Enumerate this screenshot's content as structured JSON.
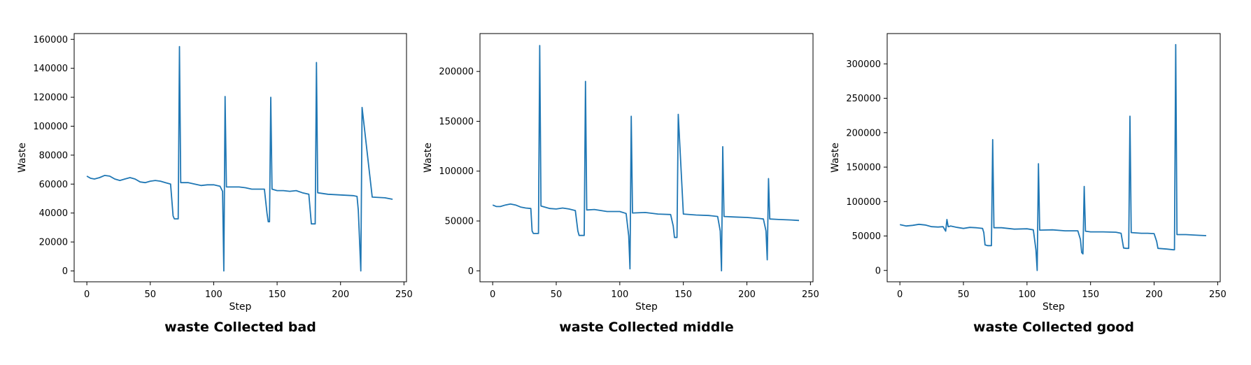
{
  "chart_data": [
    {
      "type": "line",
      "title": "waste Collected bad",
      "xlabel": "Step",
      "ylabel": "Waste",
      "xlim": [
        -10,
        252
      ],
      "ylim": [
        -7500,
        164000
      ],
      "xticks": [
        0,
        50,
        100,
        150,
        200,
        250
      ],
      "xtick_labels": [
        "0",
        "50",
        "100",
        "150",
        "200",
        "250"
      ],
      "yticks": [
        0,
        20000,
        40000,
        60000,
        80000,
        100000,
        120000,
        140000,
        160000
      ],
      "ytick_labels": [
        "0",
        "20000",
        "40000",
        "60000",
        "80000",
        "100000",
        "120000",
        "140000",
        "160000"
      ],
      "grid": false,
      "series": [
        {
          "color": "#1f77b4",
          "x": [
            0,
            3,
            6,
            10,
            14,
            18,
            22,
            26,
            30,
            34,
            38,
            42,
            46,
            50,
            54,
            58,
            62,
            66,
            68,
            69,
            70,
            72,
            73,
            74,
            80,
            85,
            90,
            95,
            100,
            105,
            107,
            108,
            109,
            110,
            115,
            120,
            125,
            130,
            135,
            140,
            142,
            143,
            144,
            145,
            146,
            150,
            155,
            160,
            165,
            170,
            175,
            177,
            178,
            180,
            181,
            182,
            190,
            200,
            210,
            213,
            214,
            216,
            217,
            225,
            235,
            241
          ],
          "y": [
            65500,
            64000,
            63500,
            64500,
            66000,
            65500,
            63500,
            62500,
            63500,
            64500,
            63500,
            61500,
            61000,
            62000,
            62500,
            62000,
            61000,
            60000,
            38000,
            36000,
            36000,
            36000,
            155000,
            61000,
            61000,
            60000,
            59000,
            59500,
            59500,
            58500,
            55000,
            0,
            120500,
            58000,
            58000,
            58000,
            57500,
            56500,
            56500,
            56500,
            40000,
            34000,
            34000,
            120000,
            56500,
            55500,
            55500,
            55000,
            55500,
            54000,
            53000,
            32500,
            32500,
            32500,
            144000,
            54000,
            53000,
            52500,
            52000,
            51500,
            42000,
            0,
            113000,
            51000,
            50500,
            49500
          ]
        }
      ]
    },
    {
      "type": "line",
      "title": "waste Collected middle",
      "xlabel": "Step",
      "ylabel": "Waste",
      "xlim": [
        -10,
        252
      ],
      "ylim": [
        -11000,
        238000
      ],
      "xticks": [
        0,
        50,
        100,
        150,
        200,
        250
      ],
      "xtick_labels": [
        "0",
        "50",
        "100",
        "150",
        "200",
        "250"
      ],
      "yticks": [
        0,
        50000,
        100000,
        150000,
        200000
      ],
      "ytick_labels": [
        "0",
        "50000",
        "100000",
        "150000",
        "200000"
      ],
      "grid": false,
      "series": [
        {
          "color": "#1f77b4",
          "x": [
            0,
            3,
            6,
            10,
            14,
            18,
            22,
            26,
            30,
            31,
            32,
            34,
            36,
            37,
            38,
            45,
            50,
            55,
            60,
            65,
            67,
            68,
            70,
            72,
            73,
            74,
            80,
            90,
            100,
            105,
            107,
            108,
            109,
            110,
            120,
            130,
            140,
            142,
            143,
            145,
            146,
            150,
            160,
            170,
            177,
            179,
            180,
            181,
            182,
            190,
            200,
            210,
            213,
            215,
            216,
            217,
            218,
            225,
            235,
            241
          ],
          "y": [
            66000,
            64500,
            64500,
            66000,
            67000,
            66000,
            64000,
            63000,
            62500,
            40000,
            37500,
            37500,
            37500,
            226000,
            65000,
            62500,
            62000,
            63000,
            62000,
            60500,
            40000,
            35500,
            35500,
            35500,
            190000,
            61000,
            61500,
            59500,
            59500,
            57500,
            35000,
            2000,
            155000,
            58000,
            58500,
            57000,
            56500,
            45000,
            33500,
            33500,
            157000,
            57000,
            56000,
            55500,
            54500,
            40000,
            0,
            124500,
            54500,
            54000,
            53500,
            52500,
            52000,
            40000,
            11000,
            92500,
            52000,
            51500,
            51000,
            50500
          ]
        }
      ]
    },
    {
      "type": "line",
      "title": "waste Collected good",
      "xlabel": "Step",
      "ylabel": "Waste",
      "xlim": [
        -10,
        252
      ],
      "ylim": [
        -16500,
        344000
      ],
      "xticks": [
        0,
        50,
        100,
        150,
        200,
        250
      ],
      "xtick_labels": [
        "0",
        "50",
        "100",
        "150",
        "200",
        "250"
      ],
      "yticks": [
        0,
        50000,
        100000,
        150000,
        200000,
        250000,
        300000
      ],
      "ytick_labels": [
        "0",
        "50000",
        "100000",
        "150000",
        "200000",
        "250000",
        "300000"
      ],
      "grid": false,
      "series": [
        {
          "color": "#1f77b4",
          "x": [
            0,
            5,
            10,
            15,
            20,
            25,
            30,
            34,
            36,
            37,
            38,
            40,
            45,
            50,
            55,
            60,
            65,
            66,
            67,
            69,
            70,
            72,
            73,
            74,
            80,
            90,
            100,
            105,
            107,
            108,
            109,
            110,
            120,
            130,
            140,
            142,
            143,
            144,
            145,
            146,
            150,
            160,
            170,
            174,
            176,
            178,
            180,
            181,
            182,
            190,
            195,
            200,
            202,
            203,
            210,
            215,
            216,
            217,
            218,
            225,
            235,
            241
          ],
          "y": [
            66500,
            64500,
            65500,
            67000,
            66000,
            63500,
            63000,
            63500,
            57000,
            74000,
            63500,
            64500,
            62500,
            61000,
            62500,
            62000,
            61000,
            55000,
            37000,
            36000,
            36000,
            36000,
            190000,
            62000,
            62000,
            60000,
            60500,
            59000,
            30000,
            0,
            155000,
            58500,
            59000,
            57500,
            57500,
            45000,
            26000,
            24000,
            122000,
            57000,
            56000,
            56000,
            55500,
            54000,
            32500,
            32000,
            32000,
            224000,
            55000,
            54000,
            54000,
            53500,
            42000,
            32000,
            31000,
            30000,
            30000,
            328000,
            52000,
            52000,
            51000,
            50500
          ]
        }
      ]
    }
  ]
}
